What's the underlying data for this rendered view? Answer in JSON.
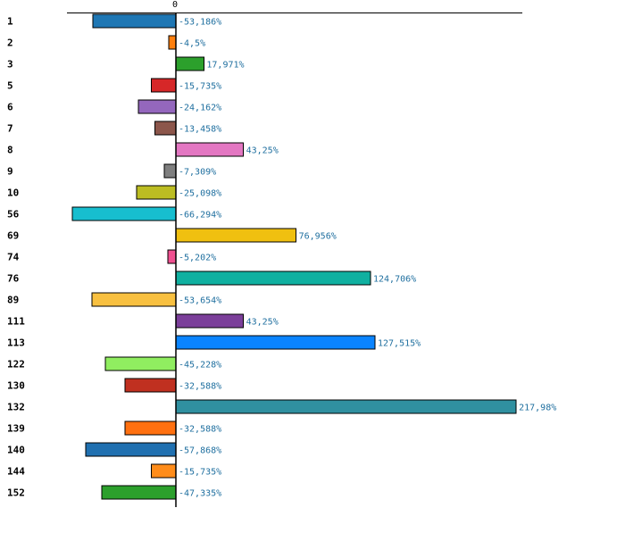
{
  "chart_data": {
    "type": "bar",
    "orientation": "horizontal",
    "zero_tick_label": "0",
    "categories": [
      "1",
      "2",
      "3",
      "5",
      "6",
      "7",
      "8",
      "9",
      "10",
      "56",
      "69",
      "74",
      "76",
      "89",
      "111",
      "113",
      "122",
      "130",
      "132",
      "139",
      "140",
      "144",
      "152"
    ],
    "values": [
      -53.186,
      -4.5,
      17.971,
      -15.735,
      -24.162,
      -13.458,
      43.25,
      -7.309,
      -25.098,
      -66.294,
      76.956,
      -5.202,
      124.706,
      -53.654,
      43.25,
      127.515,
      -45.228,
      -32.588,
      217.98,
      -32.588,
      -57.868,
      -15.735,
      -47.335
    ],
    "value_labels": [
      "-53,186%",
      "-4,5%",
      "17,971%",
      "-15,735%",
      "-24,162%",
      "-13,458%",
      "43,25%",
      "-7,309%",
      "-25,098%",
      "-66,294%",
      "76,956%",
      "-5,202%",
      "124,706%",
      "-53,654%",
      "43,25%",
      "127,515%",
      "-45,228%",
      "-32,588%",
      "217,98%",
      "-32,588%",
      "-57,868%",
      "-15,735%",
      "-47,335%"
    ],
    "colors": [
      "#1f77b4",
      "#ff7f0e",
      "#2ca02c",
      "#d62728",
      "#9467bd",
      "#8c564b",
      "#e377c2",
      "#7f7f7f",
      "#bcbd22",
      "#17becf",
      "#f0c010",
      "#f05090",
      "#10b0a0",
      "#f8c040",
      "#7b3f9a",
      "#0a84ff",
      "#90ee60",
      "#c03020",
      "#3090a0",
      "#ff7010",
      "#2070b0",
      "#ff8c1a",
      "#2ca02c"
    ],
    "xlim": [
      -68.5,
      221
    ],
    "title": "",
    "xlabel": "",
    "ylabel": "",
    "grid": false
  }
}
